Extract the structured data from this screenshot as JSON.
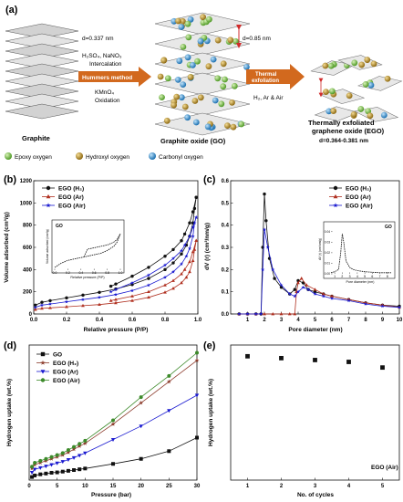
{
  "schematic": {
    "label": "(a)",
    "graphite_label": "Graphite",
    "d_graphite": "d=0.337 nm",
    "reagents1": "H₂SO₄, NaNO₃",
    "step1": "Intercalation",
    "method": "Hummers method",
    "reagent2": "KMnO₄",
    "step2": "Oxidation",
    "d_go": "d=0.85 nm",
    "go_label": "Graphite oxide (GO)",
    "thermal_line1": "Thermal",
    "thermal_line2": "exfoliation",
    "atmosphere": "H₂, Ar & Air",
    "ego_line1": "Thermally exfoliated",
    "ego_line2": "graphene oxide (EGO)",
    "d_ego": "d=0.364-0.381 nm",
    "legend": [
      {
        "label": "Epoxy oxygen",
        "color": "#6fbf3c"
      },
      {
        "label": "Hydroxyl oxygen",
        "color": "#b8860b"
      },
      {
        "label": "Carbonyl oxygen",
        "color": "#2a8fd4"
      }
    ]
  },
  "chart_data": [
    {
      "panel": "(b)",
      "type": "line",
      "xlabel": "Relative pressure (P₀/P₀)",
      "xlabel_display": "Relative pressure (P/P)",
      "ylabel": "Volume adsorbed (cm³/g)",
      "xlim": [
        0,
        1
      ],
      "ylim": [
        0,
        1200
      ],
      "xticks": [
        "0.0",
        "0.2",
        "0.4",
        "0.6",
        "0.8",
        "1.0"
      ],
      "yticks": [
        "0",
        "200",
        "400",
        "600",
        "800",
        "1000",
        "1200"
      ],
      "legend_placement": "top-left",
      "series": [
        {
          "name": "EGO (H₂)",
          "marker": "circle",
          "color": "#111111",
          "x": [
            0.01,
            0.05,
            0.1,
            0.2,
            0.3,
            0.4,
            0.5,
            0.6,
            0.7,
            0.8,
            0.85,
            0.9,
            0.93,
            0.95,
            0.97,
            0.98,
            0.99,
            0.99,
            0.97,
            0.95,
            0.92,
            0.9,
            0.85,
            0.8,
            0.7,
            0.6,
            0.5,
            0.47
          ],
          "y": [
            80,
            105,
            120,
            145,
            170,
            195,
            225,
            265,
            320,
            400,
            460,
            540,
            620,
            700,
            820,
            950,
            1050,
            1050,
            920,
            820,
            720,
            660,
            580,
            520,
            420,
            340,
            270,
            250
          ]
        },
        {
          "name": "EGO (Ar)",
          "marker": "triangle",
          "color": "#b03020",
          "x": [
            0.01,
            0.05,
            0.1,
            0.2,
            0.3,
            0.4,
            0.5,
            0.6,
            0.7,
            0.8,
            0.85,
            0.9,
            0.93,
            0.95,
            0.97,
            0.98,
            0.99,
            0.99,
            0.97,
            0.95,
            0.92,
            0.9,
            0.85,
            0.8,
            0.7,
            0.6,
            0.5,
            0.47
          ],
          "y": [
            40,
            50,
            55,
            65,
            75,
            85,
            100,
            120,
            150,
            195,
            230,
            280,
            330,
            380,
            480,
            580,
            660,
            660,
            560,
            470,
            400,
            360,
            300,
            260,
            200,
            160,
            130,
            120
          ]
        },
        {
          "name": "EGO (Air)",
          "marker": "star",
          "color": "#1a1ad0",
          "x": [
            0.01,
            0.05,
            0.1,
            0.2,
            0.3,
            0.4,
            0.5,
            0.6,
            0.7,
            0.8,
            0.85,
            0.9,
            0.93,
            0.95,
            0.97,
            0.98,
            0.99,
            0.99,
            0.97,
            0.95,
            0.92,
            0.9,
            0.85,
            0.8,
            0.7,
            0.6,
            0.5,
            0.47
          ],
          "y": [
            60,
            80,
            90,
            110,
            130,
            150,
            175,
            210,
            260,
            330,
            380,
            450,
            520,
            590,
            700,
            820,
            870,
            870,
            780,
            700,
            620,
            570,
            500,
            440,
            350,
            280,
            220,
            200
          ]
        }
      ],
      "inset": {
        "label": "GO",
        "xlabel": "Relative pressure (P/P)",
        "ylabel": "Volume adsorbed (cm³/g)",
        "xticks": [
          "0.0",
          "0.2",
          "0.4",
          "0.6",
          "0.8",
          "1.0"
        ],
        "xlim": [
          0,
          1
        ],
        "ylim": [
          0,
          30
        ],
        "x": [
          0.0,
          0.1,
          0.2,
          0.3,
          0.4,
          0.5,
          0.6,
          0.7,
          0.8,
          0.9,
          0.95,
          1.0,
          0.95,
          0.9,
          0.8,
          0.7,
          0.6,
          0.5,
          0.45
        ],
        "y": [
          2,
          5,
          7,
          8,
          9,
          10,
          11,
          12,
          14,
          17,
          20,
          26,
          22,
          20,
          18,
          17,
          16,
          15,
          10
        ]
      }
    },
    {
      "panel": "(c)",
      "type": "line",
      "xlabel": "Pore diameter (nm)",
      "ylabel": "dV (r) (cm³/nm/g)",
      "xlim": [
        0,
        10
      ],
      "ylim": [
        0,
        0.6
      ],
      "xticks": [
        "1",
        "2",
        "3",
        "4",
        "5",
        "6",
        "7",
        "8",
        "9",
        "10"
      ],
      "yticks": [
        "0.0",
        "0.1",
        "0.2",
        "0.3",
        "0.4",
        "0.5",
        "0.6"
      ],
      "legend_placement": "top-right",
      "series": [
        {
          "name": "EGO (H₂)",
          "marker": "circle",
          "color": "#111111",
          "x": [
            0.5,
            1.0,
            1.5,
            1.8,
            1.9,
            2.0,
            2.1,
            2.3,
            2.6,
            3.0,
            3.5,
            3.8,
            4.0,
            4.3,
            4.6,
            5.0,
            5.5,
            6.0,
            7.0,
            8.0,
            9.0,
            10.0
          ],
          "y": [
            0.0,
            0.0,
            0.0,
            0.0,
            0.3,
            0.54,
            0.42,
            0.25,
            0.16,
            0.12,
            0.09,
            0.11,
            0.15,
            0.14,
            0.11,
            0.1,
            0.09,
            0.08,
            0.065,
            0.05,
            0.04,
            0.035
          ]
        },
        {
          "name": "EGO (Ar)",
          "marker": "triangle",
          "color": "#b03020",
          "x": [
            0.5,
            1.0,
            1.5,
            2.0,
            2.5,
            3.0,
            3.5,
            3.8,
            3.9,
            4.0,
            4.2,
            4.5,
            5.0,
            5.5,
            6.0,
            7.0,
            8.0,
            9.0,
            10.0
          ],
          "y": [
            0.0,
            0.0,
            0.0,
            0.0,
            0.0,
            0.0,
            0.0,
            0.0,
            0.1,
            0.14,
            0.16,
            0.13,
            0.11,
            0.09,
            0.08,
            0.065,
            0.05,
            0.04,
            0.03
          ]
        },
        {
          "name": "EGO (Air)",
          "marker": "star",
          "color": "#1a1ad0",
          "x": [
            0.5,
            1.0,
            1.5,
            1.8,
            1.9,
            2.0,
            2.2,
            2.5,
            3.0,
            3.5,
            3.8,
            4.0,
            4.3,
            4.6,
            5.0,
            5.5,
            6.0,
            7.0,
            8.0,
            9.0,
            10.0
          ],
          "y": [
            0.0,
            0.0,
            0.0,
            0.0,
            0.2,
            0.38,
            0.3,
            0.2,
            0.13,
            0.09,
            0.08,
            0.1,
            0.12,
            0.11,
            0.09,
            0.08,
            0.07,
            0.06,
            0.045,
            0.035,
            0.03
          ]
        }
      ],
      "inset": {
        "label": "GO",
        "xlabel": "Pore diameter (nm)",
        "ylabel": "dV (r) (cm³/nm/g)",
        "xticks": [
          "1",
          "2",
          "3",
          "4",
          "5",
          "6",
          "7",
          "8"
        ],
        "yticks": [
          "0.00",
          "0.01",
          "0.02",
          "0.03",
          "0.04"
        ],
        "xlim": [
          0.5,
          8.5
        ],
        "ylim": [
          0,
          0.045
        ],
        "x": [
          0.5,
          1.0,
          1.5,
          1.8,
          2.0,
          2.2,
          2.5,
          3.0,
          3.5,
          4.0,
          5.0,
          6.0,
          7.0,
          8.0,
          8.5
        ],
        "y": [
          0.001,
          0.002,
          0.004,
          0.02,
          0.038,
          0.03,
          0.012,
          0.006,
          0.004,
          0.003,
          0.002,
          0.0015,
          0.001,
          0.001,
          0.001
        ]
      }
    },
    {
      "panel": "(d)",
      "type": "line",
      "xlabel": "Pressure (bar)",
      "ylabel": "Hydrogen uptake (wt.%)",
      "xlim": [
        0,
        30
      ],
      "ylim": [
        0,
        3.5
      ],
      "xticks": [
        "0",
        "5",
        "10",
        "15",
        "20",
        "25",
        "30"
      ],
      "legend_placement": "top-left",
      "series": [
        {
          "name": "GO",
          "marker": "square",
          "color": "#111111",
          "x": [
            0.5,
            1,
            2,
            3,
            4,
            5,
            6,
            7,
            8,
            9,
            10,
            15,
            20,
            25,
            30
          ],
          "y": [
            0.08,
            0.12,
            0.15,
            0.17,
            0.19,
            0.2,
            0.22,
            0.24,
            0.26,
            0.28,
            0.3,
            0.42,
            0.55,
            0.75,
            1.1
          ]
        },
        {
          "name": "EGO (H₂)",
          "marker": "star",
          "color": "#8b3a2a",
          "x": [
            0.5,
            1,
            2,
            3,
            4,
            5,
            6,
            7,
            8,
            9,
            10,
            15,
            20,
            25,
            30
          ],
          "y": [
            0.3,
            0.4,
            0.45,
            0.5,
            0.55,
            0.6,
            0.65,
            0.72,
            0.8,
            0.88,
            0.95,
            1.45,
            2.0,
            2.55,
            3.1
          ]
        },
        {
          "name": "EGO (Ar)",
          "marker": "triangle-down",
          "color": "#1a1ad0",
          "x": [
            0.5,
            1,
            2,
            3,
            4,
            5,
            6,
            7,
            8,
            9,
            10,
            15,
            20,
            25,
            30
          ],
          "y": [
            0.2,
            0.28,
            0.32,
            0.36,
            0.4,
            0.44,
            0.48,
            0.53,
            0.58,
            0.64,
            0.7,
            1.05,
            1.4,
            1.8,
            2.2
          ]
        },
        {
          "name": "EGO (Air)",
          "marker": "circle",
          "color": "#3c8a2a",
          "x": [
            0.5,
            1,
            2,
            3,
            4,
            5,
            6,
            7,
            8,
            9,
            10,
            15,
            20,
            25,
            30
          ],
          "y": [
            0.35,
            0.45,
            0.5,
            0.55,
            0.6,
            0.65,
            0.7,
            0.78,
            0.86,
            0.94,
            1.02,
            1.55,
            2.15,
            2.7,
            3.3
          ]
        }
      ]
    },
    {
      "panel": "(e)",
      "type": "scatter",
      "xlabel": "No. of cycles",
      "ylabel": "Hydrogen uptake (wt.%)",
      "xlim": [
        0.5,
        5.5
      ],
      "ylim": [
        0,
        3.6
      ],
      "xticks": [
        "1",
        "2",
        "3",
        "4",
        "5"
      ],
      "annotation": "EGO (Air)",
      "series": [
        {
          "name": "EGO (Air)",
          "marker": "square",
          "color": "#111111",
          "x": [
            1,
            2,
            3,
            4,
            5
          ],
          "y": [
            3.3,
            3.25,
            3.2,
            3.15,
            3.0
          ]
        }
      ]
    }
  ]
}
